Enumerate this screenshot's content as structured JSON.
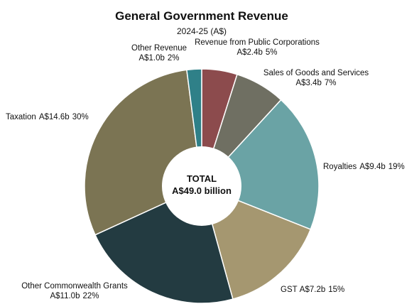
{
  "chart_data": {
    "type": "donut",
    "title": "General Government Revenue",
    "subtitle": "2024-25 (A$)",
    "center_label": [
      "TOTAL",
      "A$49.0 billion"
    ],
    "categories": [
      "Revenue from Public Corporations",
      "Sales of Goods and Services",
      "Royalties",
      "GST",
      "Other Commonwealth Grants",
      "Taxation",
      "Other Revenue"
    ],
    "values": [
      2.4,
      3.4,
      9.4,
      7.2,
      11.0,
      14.6,
      1.0
    ],
    "value_labels": [
      "A$2.4b",
      "A$3.4b",
      "A$9.4b",
      "A$7.2b",
      "A$11.0b",
      "A$14.6b",
      "A$1.0b"
    ],
    "percent_labels": [
      "5%",
      "7%",
      "19%",
      "15%",
      "22%",
      "30%",
      "2%"
    ],
    "colors": [
      "#8c4b4d",
      "#6f6f62",
      "#6aa3a5",
      "#a59770",
      "#233b41",
      "#7b7453",
      "#2f8088"
    ]
  }
}
